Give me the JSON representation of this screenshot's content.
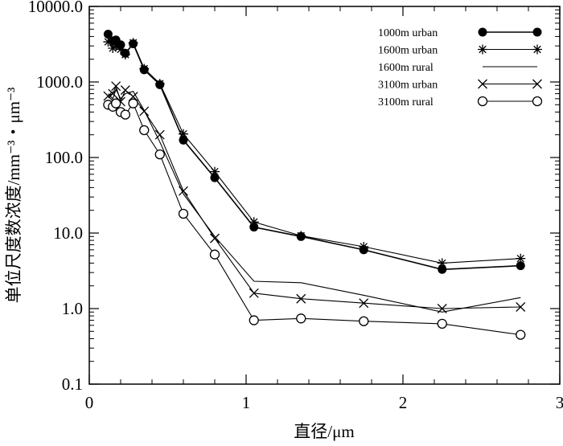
{
  "chart_data": {
    "type": "line",
    "xlabel": "直径/μm",
    "ylabel": "单位尺度数浓度/mm⁻³・μm⁻³",
    "xlim": [
      0,
      3
    ],
    "ylim": [
      0.1,
      10000
    ],
    "yscale": "log",
    "x_ticks": [
      "0",
      "1",
      "2",
      "3"
    ],
    "y_ticks": [
      "0.1",
      "1.0",
      "10.0",
      "100.0",
      "1000.0",
      "10000.0"
    ],
    "legend_position": "top-right",
    "series": [
      {
        "name": "1000m urban",
        "marker": "filled-circle",
        "x": [
          0.12,
          0.15,
          0.17,
          0.2,
          0.23,
          0.28,
          0.35,
          0.45,
          0.6,
          0.8,
          1.05,
          1.35,
          1.75,
          2.25,
          2.75
        ],
        "y": [
          4300,
          3500,
          3600,
          3100,
          2400,
          3200,
          1450,
          920,
          170,
          54,
          12,
          9,
          6,
          3.3,
          3.7
        ]
      },
      {
        "name": "1600m urban",
        "marker": "asterisk",
        "x": [
          0.12,
          0.15,
          0.17,
          0.2,
          0.23,
          0.28,
          0.35,
          0.45,
          0.6,
          0.8,
          1.05,
          1.35,
          1.75,
          2.25,
          2.75
        ],
        "y": [
          3400,
          2800,
          3000,
          2700,
          2300,
          3300,
          1500,
          950,
          205,
          65,
          14,
          9.2,
          6.6,
          4.0,
          4.6
        ]
      },
      {
        "name": "1600m rural",
        "marker": "none",
        "x": [
          0.12,
          0.15,
          0.17,
          0.2,
          0.23,
          0.28,
          0.35,
          0.45,
          0.6,
          0.8,
          1.05,
          1.35,
          1.75,
          2.25,
          2.75
        ],
        "y": [
          700,
          600,
          800,
          600,
          700,
          750,
          420,
          160,
          33,
          9,
          2.3,
          2.2,
          1.5,
          0.9,
          1.4
        ]
      },
      {
        "name": "3100m urban",
        "marker": "x",
        "x": [
          0.12,
          0.15,
          0.17,
          0.2,
          0.23,
          0.28,
          0.35,
          0.45,
          0.6,
          0.8,
          1.05,
          1.35,
          1.75,
          2.25,
          2.75
        ],
        "y": [
          650,
          700,
          880,
          550,
          780,
          640,
          410,
          200,
          36,
          8.5,
          1.6,
          1.35,
          1.18,
          1.0,
          1.05
        ]
      },
      {
        "name": "3100m rural",
        "marker": "open-circle",
        "x": [
          0.12,
          0.15,
          0.17,
          0.2,
          0.23,
          0.28,
          0.35,
          0.45,
          0.6,
          0.8,
          1.05,
          1.35,
          1.75,
          2.25,
          2.75
        ],
        "y": [
          500,
          470,
          520,
          400,
          370,
          520,
          230,
          110,
          18,
          5.2,
          0.7,
          0.74,
          0.68,
          0.63,
          0.45
        ]
      }
    ]
  }
}
